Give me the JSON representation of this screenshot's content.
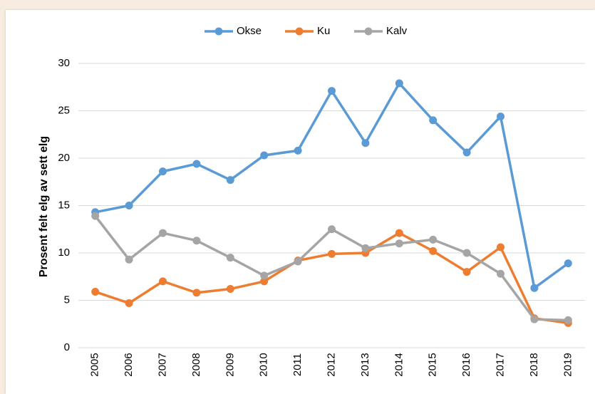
{
  "chart_data": {
    "type": "line",
    "y_label": "Prosent felt elg av sett elg",
    "categories": [
      "2005",
      "2006",
      "2007",
      "2008",
      "2009",
      "2010",
      "2011",
      "2012",
      "2013",
      "2014",
      "2015",
      "2016",
      "2017",
      "2018",
      "2019"
    ],
    "series": [
      {
        "name": "Okse",
        "color": "#5b9bd5",
        "values": [
          14.3,
          15.0,
          18.6,
          19.4,
          17.7,
          20.3,
          20.8,
          27.1,
          21.6,
          27.9,
          24.0,
          20.6,
          24.4,
          6.3,
          8.9
        ]
      },
      {
        "name": "Ku",
        "color": "#ed7d31",
        "values": [
          5.9,
          4.7,
          7.0,
          5.8,
          6.2,
          7.0,
          9.2,
          9.9,
          10.0,
          12.1,
          10.2,
          8.0,
          10.6,
          3.1,
          2.6
        ]
      },
      {
        "name": "Kalv",
        "color": "#a5a5a5",
        "values": [
          13.9,
          9.3,
          12.1,
          11.3,
          9.5,
          7.6,
          9.1,
          12.5,
          10.5,
          11.0,
          11.4,
          10.0,
          7.8,
          3.0,
          2.9
        ]
      }
    ],
    "ylim": [
      0,
      30
    ],
    "yticks": [
      0,
      5,
      10,
      15,
      20,
      25,
      30
    ],
    "grid": true,
    "legend": "top"
  }
}
